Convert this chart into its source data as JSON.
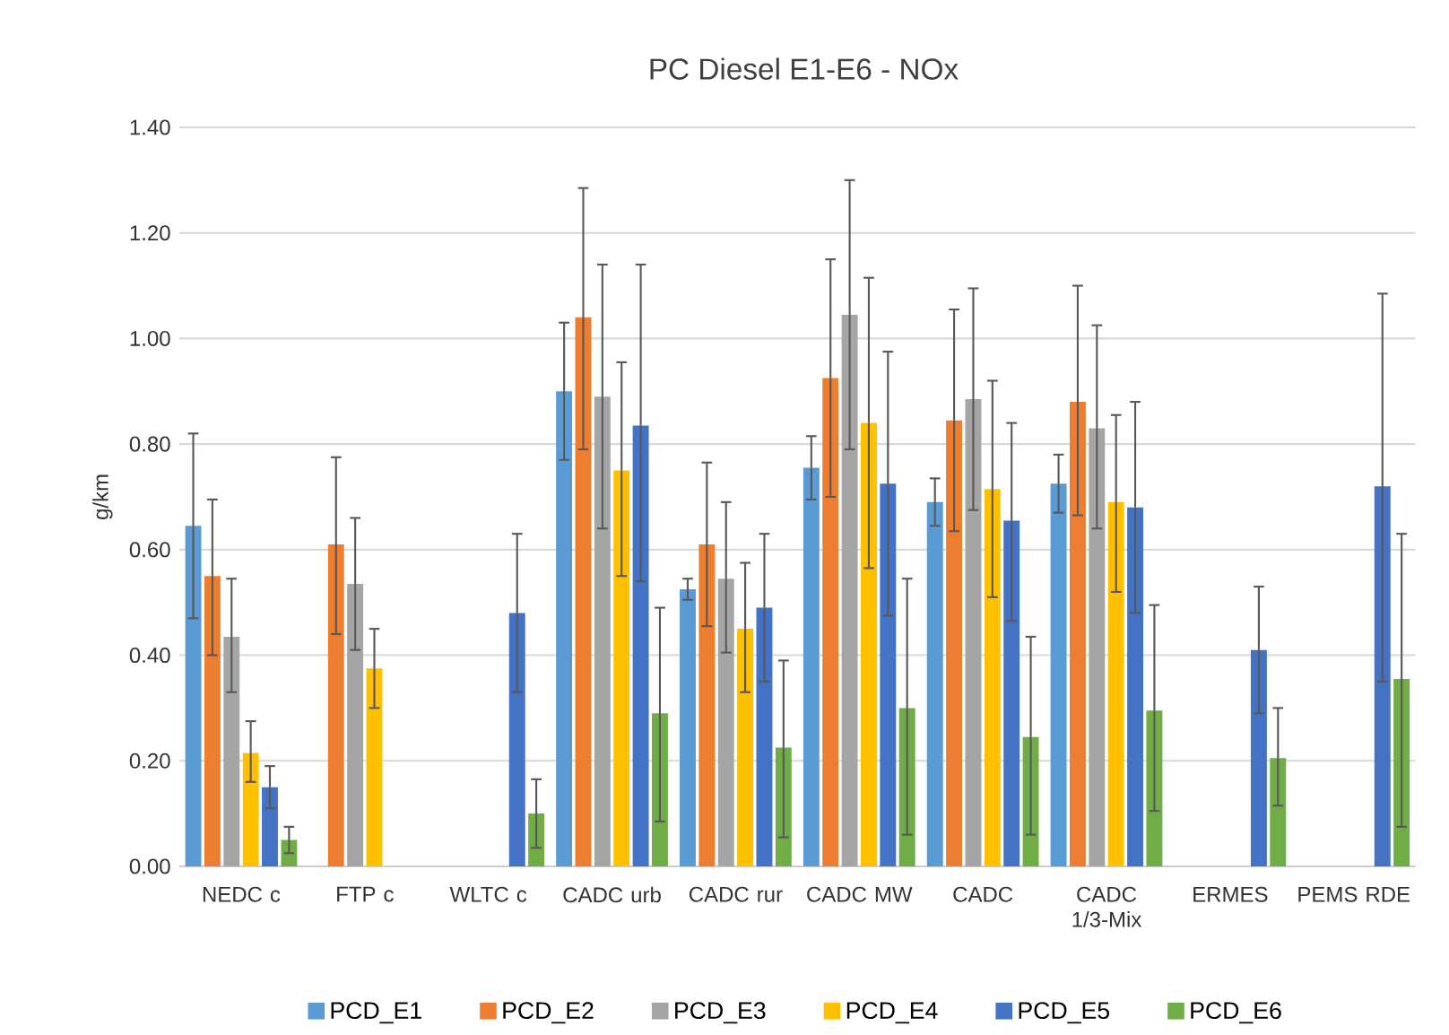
{
  "chart_data": {
    "type": "bar",
    "title": "PC Diesel E1-E6 - NOx",
    "ylabel": "g/km",
    "categories": [
      "NEDC c",
      "FTP c",
      "WLTC c",
      "CADC urb",
      "CADC rur",
      "CADC MW",
      "CADC",
      "CADC 1/3-Mix",
      "ERMES",
      "PEMS RDE"
    ],
    "series": [
      {
        "name": "PCD_E1",
        "color": "#5b9bd5",
        "values": [
          0.645,
          0,
          0,
          0.9,
          0.525,
          0.755,
          0.69,
          0.725,
          0,
          0
        ],
        "errors": [
          [
            0.47,
            0.82
          ],
          null,
          null,
          [
            0.77,
            1.03
          ],
          [
            0.505,
            0.545
          ],
          [
            0.695,
            0.815
          ],
          [
            0.645,
            0.735
          ],
          [
            0.67,
            0.78
          ],
          null,
          null
        ]
      },
      {
        "name": "PCD_E2",
        "color": "#ed7d31",
        "values": [
          0.55,
          0.61,
          0,
          1.04,
          0.61,
          0.925,
          0.845,
          0.88,
          0,
          0
        ],
        "errors": [
          [
            0.4,
            0.695
          ],
          [
            0.44,
            0.775
          ],
          null,
          [
            0.79,
            1.285
          ],
          [
            0.455,
            0.765
          ],
          [
            0.7,
            1.15
          ],
          [
            0.635,
            1.055
          ],
          [
            0.665,
            1.1
          ],
          null,
          null
        ]
      },
      {
        "name": "PCD_E3",
        "color": "#a5a5a5",
        "values": [
          0.435,
          0.535,
          0,
          0.89,
          0.545,
          1.045,
          0.885,
          0.83,
          0,
          0
        ],
        "errors": [
          [
            0.33,
            0.545
          ],
          [
            0.41,
            0.66
          ],
          null,
          [
            0.64,
            1.14
          ],
          [
            0.405,
            0.69
          ],
          [
            0.79,
            1.3
          ],
          [
            0.675,
            1.095
          ],
          [
            0.64,
            1.025
          ],
          null,
          null
        ]
      },
      {
        "name": "PCD_E4",
        "color": "#ffc000",
        "values": [
          0.215,
          0.375,
          0,
          0.75,
          0.45,
          0.84,
          0.715,
          0.69,
          0,
          0
        ],
        "errors": [
          [
            0.16,
            0.275
          ],
          [
            0.3,
            0.45
          ],
          null,
          [
            0.55,
            0.955
          ],
          [
            0.33,
            0.575
          ],
          [
            0.565,
            1.115
          ],
          [
            0.51,
            0.92
          ],
          [
            0.52,
            0.855
          ],
          null,
          null
        ]
      },
      {
        "name": "PCD_E5",
        "color": "#4472c4",
        "values": [
          0.15,
          0,
          0.48,
          0.835,
          0.49,
          0.725,
          0.655,
          0.68,
          0.41,
          0.72
        ],
        "errors": [
          [
            0.11,
            0.19
          ],
          null,
          [
            0.33,
            0.63
          ],
          [
            0.54,
            1.14
          ],
          [
            0.35,
            0.63
          ],
          [
            0.475,
            0.975
          ],
          [
            0.465,
            0.84
          ],
          [
            0.48,
            0.88
          ],
          [
            0.29,
            0.53
          ],
          [
            0.35,
            1.085
          ]
        ]
      },
      {
        "name": "PCD_E6",
        "color": "#70ad47",
        "values": [
          0.05,
          0,
          0.1,
          0.29,
          0.225,
          0.3,
          0.245,
          0.295,
          0.205,
          0.355
        ],
        "errors": [
          [
            0.025,
            0.075
          ],
          null,
          [
            0.035,
            0.165
          ],
          [
            0.085,
            0.49
          ],
          [
            0.055,
            0.39
          ],
          [
            0.06,
            0.545
          ],
          [
            0.06,
            0.435
          ],
          [
            0.105,
            0.495
          ],
          [
            0.115,
            0.3
          ],
          [
            0.075,
            0.63
          ]
        ]
      }
    ],
    "ylim": [
      0,
      1.4
    ],
    "yticks": [
      {
        "value": 0,
        "label": "0.00"
      },
      {
        "value": 0.2,
        "label": "0.20"
      },
      {
        "value": 0.4,
        "label": "0.40"
      },
      {
        "value": 0.6,
        "label": "0.60"
      },
      {
        "value": 0.8,
        "label": "0.80"
      },
      {
        "value": 1.0,
        "label": "1.00"
      },
      {
        "value": 1.2,
        "label": "1.20"
      },
      {
        "value": 1.4,
        "label": "1.40"
      }
    ],
    "grid": "y",
    "legend": "bottom"
  }
}
